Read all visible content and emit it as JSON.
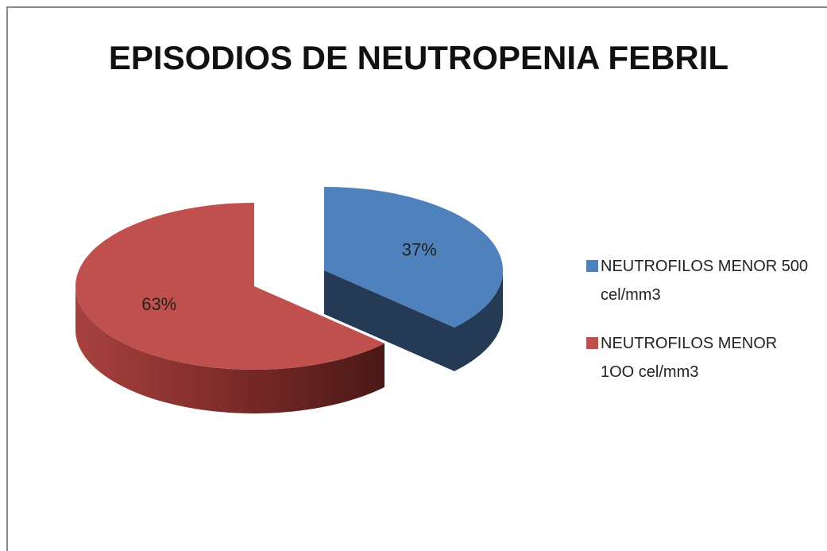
{
  "chart_data": {
    "type": "pie",
    "title": "EPISODIOS DE NEUTROPENIA FEBRIL",
    "categories": [
      "NEUTROFILOS MENOR 500 cel/mm3",
      "NEUTROFILOS MENOR 1OO cel/mm3"
    ],
    "values": [
      37,
      63
    ],
    "value_labels": [
      "37%",
      "63%"
    ],
    "colors": [
      "#4f81bd",
      "#c0504d"
    ],
    "legend": "right",
    "three_d": true
  }
}
